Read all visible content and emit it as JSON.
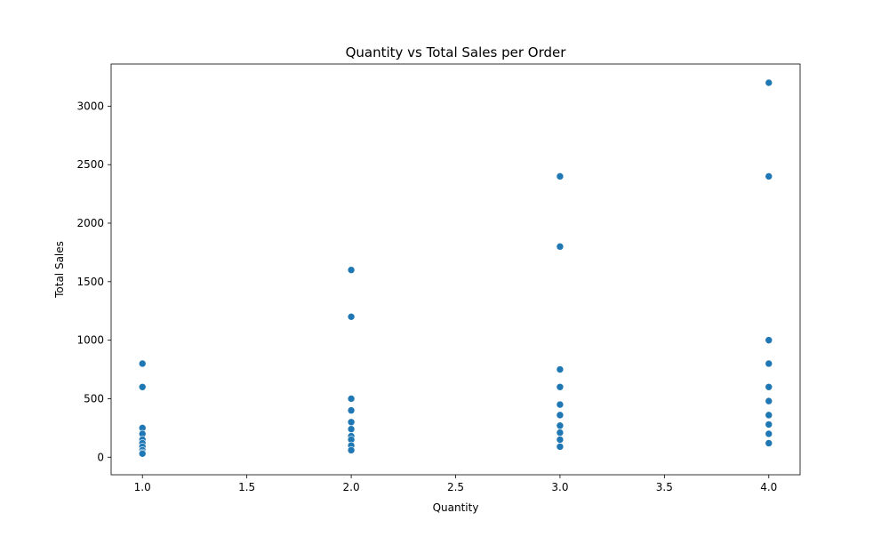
{
  "chart_data": {
    "type": "scatter",
    "title": "Quantity vs Total Sales per Order",
    "xlabel": "Quantity",
    "ylabel": "Total Sales",
    "xlim": [
      0.85,
      4.15
    ],
    "ylim": [
      -150,
      3360
    ],
    "xticks": [
      "1.0",
      "1.5",
      "2.0",
      "2.5",
      "3.0",
      "3.5",
      "4.0"
    ],
    "yticks": [
      "0",
      "500",
      "1000",
      "1500",
      "2000",
      "2500",
      "3000"
    ],
    "grid": false,
    "marker_color": "#1f77b4",
    "points": [
      {
        "x": 1,
        "y": 800
      },
      {
        "x": 1,
        "y": 600
      },
      {
        "x": 1,
        "y": 250
      },
      {
        "x": 1,
        "y": 200
      },
      {
        "x": 1,
        "y": 150
      },
      {
        "x": 1,
        "y": 120
      },
      {
        "x": 1,
        "y": 90
      },
      {
        "x": 1,
        "y": 60
      },
      {
        "x": 1,
        "y": 40
      },
      {
        "x": 1,
        "y": 30
      },
      {
        "x": 2,
        "y": 1600
      },
      {
        "x": 2,
        "y": 1200
      },
      {
        "x": 2,
        "y": 500
      },
      {
        "x": 2,
        "y": 400
      },
      {
        "x": 2,
        "y": 300
      },
      {
        "x": 2,
        "y": 240
      },
      {
        "x": 2,
        "y": 180
      },
      {
        "x": 2,
        "y": 150
      },
      {
        "x": 2,
        "y": 100
      },
      {
        "x": 2,
        "y": 60
      },
      {
        "x": 3,
        "y": 2400
      },
      {
        "x": 3,
        "y": 1800
      },
      {
        "x": 3,
        "y": 750
      },
      {
        "x": 3,
        "y": 600
      },
      {
        "x": 3,
        "y": 450
      },
      {
        "x": 3,
        "y": 360
      },
      {
        "x": 3,
        "y": 270
      },
      {
        "x": 3,
        "y": 210
      },
      {
        "x": 3,
        "y": 150
      },
      {
        "x": 3,
        "y": 90
      },
      {
        "x": 4,
        "y": 3200
      },
      {
        "x": 4,
        "y": 2400
      },
      {
        "x": 4,
        "y": 1000
      },
      {
        "x": 4,
        "y": 800
      },
      {
        "x": 4,
        "y": 600
      },
      {
        "x": 4,
        "y": 480
      },
      {
        "x": 4,
        "y": 360
      },
      {
        "x": 4,
        "y": 280
      },
      {
        "x": 4,
        "y": 200
      },
      {
        "x": 4,
        "y": 120
      }
    ]
  }
}
